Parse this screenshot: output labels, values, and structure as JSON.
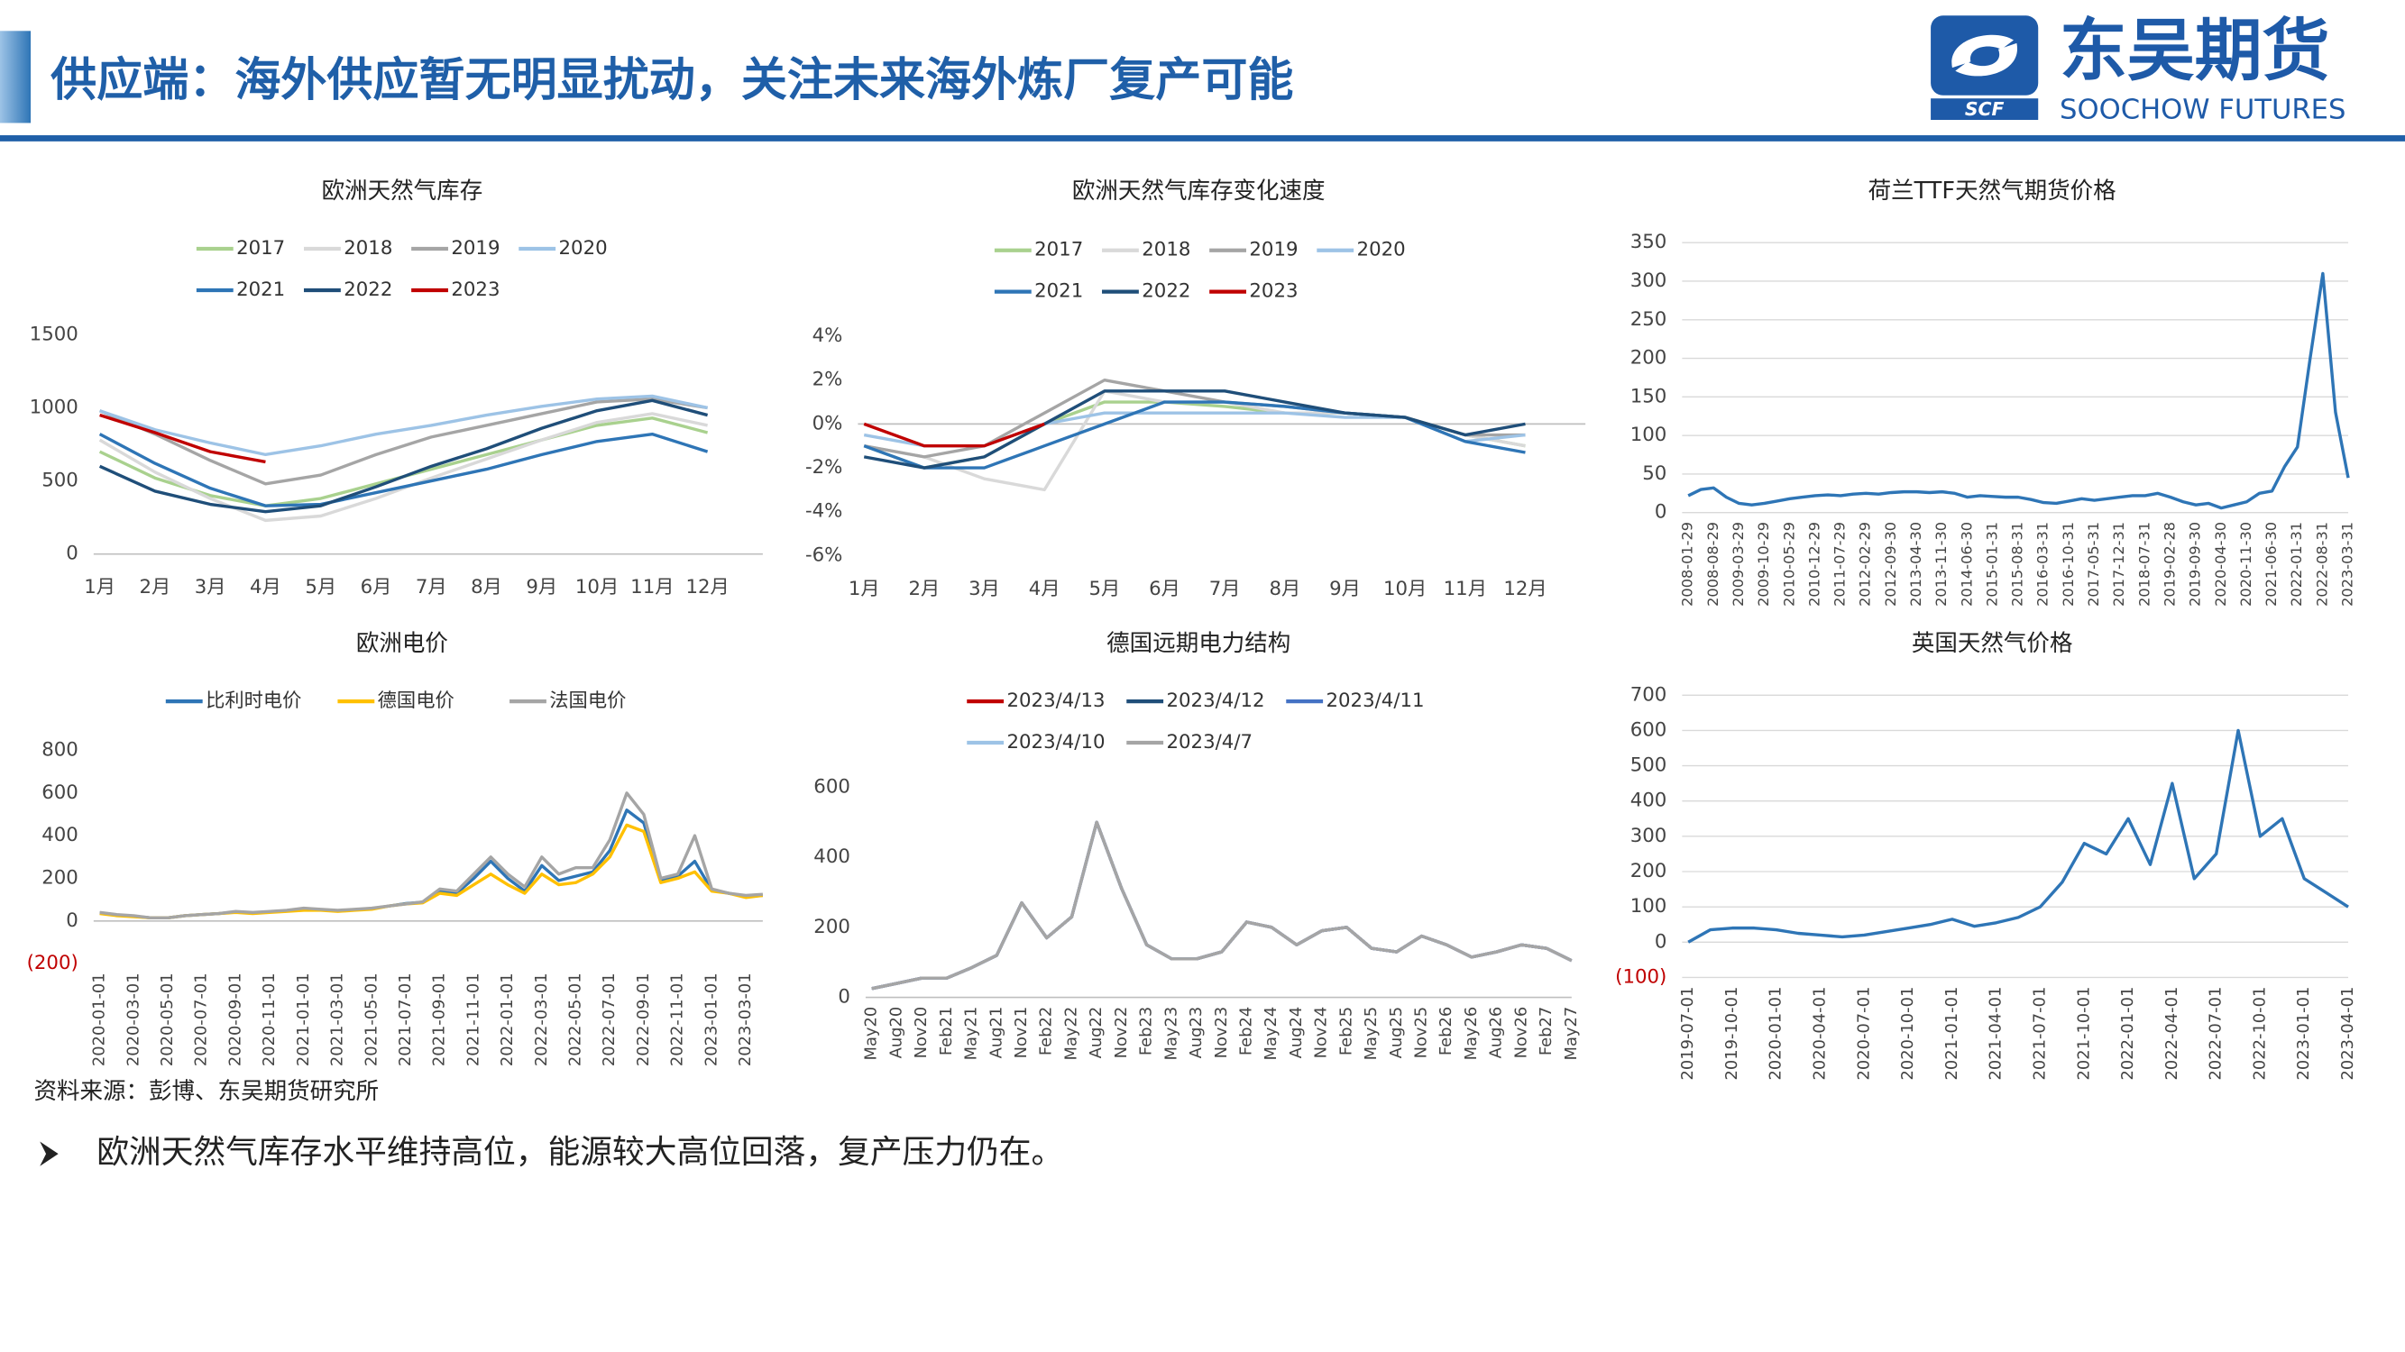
{
  "header": {
    "title": "供应端：海外供应暂无明显扰动，关注未来海外炼厂复产可能",
    "logo_mark": "SCF",
    "logo_cn": "东吴期货",
    "logo_en": "SOOCHOW FUTURES"
  },
  "chart_data": [
    {
      "type": "line",
      "title": "欧洲天然气库存",
      "legend": "top",
      "categories": [
        "1月",
        "2月",
        "3月",
        "4月",
        "5月",
        "6月",
        "7月",
        "8月",
        "9月",
        "10月",
        "11月",
        "12月"
      ],
      "series": [
        {
          "name": "2017",
          "color": "#a9d18e",
          "values": [
            700,
            520,
            400,
            330,
            380,
            480,
            580,
            680,
            780,
            880,
            930,
            830
          ]
        },
        {
          "name": "2018",
          "color": "#d9d9d9",
          "values": [
            780,
            560,
            380,
            230,
            260,
            380,
            520,
            650,
            780,
            900,
            960,
            880
          ]
        },
        {
          "name": "2019",
          "color": "#a5a5a5",
          "values": [
            980,
            820,
            640,
            480,
            540,
            680,
            800,
            880,
            960,
            1040,
            1060,
            1000
          ]
        },
        {
          "name": "2020",
          "color": "#9dc3e6",
          "values": [
            980,
            850,
            760,
            680,
            740,
            820,
            880,
            950,
            1010,
            1060,
            1080,
            1000
          ]
        },
        {
          "name": "2021",
          "color": "#2e75b6",
          "values": [
            820,
            620,
            450,
            330,
            340,
            420,
            500,
            580,
            680,
            770,
            820,
            700
          ]
        },
        {
          "name": "2022",
          "color": "#1f4e79",
          "values": [
            600,
            430,
            340,
            290,
            330,
            460,
            600,
            720,
            860,
            980,
            1050,
            950
          ]
        },
        {
          "name": "2023",
          "color": "#c00000",
          "values": [
            950,
            830,
            700,
            630,
            null,
            null,
            null,
            null,
            null,
            null,
            null,
            null
          ]
        }
      ],
      "ylim": [
        0,
        1500
      ],
      "yticks": [
        0,
        500,
        1000,
        1500
      ],
      "grid": false
    },
    {
      "type": "line",
      "title": "欧洲天然气库存变化速度",
      "legend": "top",
      "categories": [
        "1月",
        "2月",
        "3月",
        "4月",
        "5月",
        "6月",
        "7月",
        "8月",
        "9月",
        "10月",
        "11月",
        "12月"
      ],
      "series": [
        {
          "name": "2017",
          "color": "#a9d18e",
          "values": [
            -1,
            -2,
            -1.5,
            0,
            1,
            1,
            0.8,
            0.5,
            0.5,
            0.3,
            -0.5,
            -1
          ]
        },
        {
          "name": "2018",
          "color": "#d9d9d9",
          "values": [
            -1,
            -1.5,
            -2.5,
            -3,
            1.5,
            1,
            1,
            0.5,
            0.5,
            0.3,
            -0.5,
            -1
          ]
        },
        {
          "name": "2019",
          "color": "#a5a5a5",
          "values": [
            -1,
            -1.5,
            -1,
            0.5,
            2,
            1.5,
            1,
            0.8,
            0.5,
            0.3,
            -0.5,
            -0.5
          ]
        },
        {
          "name": "2020",
          "color": "#9dc3e6",
          "values": [
            -0.5,
            -1,
            -1,
            0,
            0.5,
            0.5,
            0.5,
            0.5,
            0.3,
            0.3,
            -0.8,
            -0.5
          ]
        },
        {
          "name": "2021",
          "color": "#2e75b6",
          "values": [
            -1,
            -2,
            -2,
            -1,
            0,
            1,
            1,
            0.8,
            0.5,
            0.3,
            -0.8,
            -1.3
          ]
        },
        {
          "name": "2022",
          "color": "#1f4e79",
          "values": [
            -1.5,
            -2,
            -1.5,
            0,
            1.5,
            1.5,
            1.5,
            1,
            0.5,
            0.3,
            -0.5,
            0
          ]
        },
        {
          "name": "2023",
          "color": "#c00000",
          "values": [
            0,
            -1,
            -1,
            0,
            null,
            null,
            null,
            null,
            null,
            null,
            null,
            null
          ]
        }
      ],
      "ylim": [
        -6,
        4
      ],
      "yticks": [
        {
          "value": -6,
          "label": "-6%"
        },
        {
          "value": -4,
          "label": "-4%"
        },
        {
          "value": -2,
          "label": "-2%"
        },
        {
          "value": 0,
          "label": "0%"
        },
        {
          "value": 2,
          "label": "2%"
        },
        {
          "value": 4,
          "label": "4%"
        }
      ],
      "grid": false
    },
    {
      "type": "line",
      "title": "荷兰TTF天然气期货价格",
      "categories": [
        "2008-01-29",
        null,
        "2008-08-29",
        null,
        "2009-03-29",
        null,
        "2009-10-29",
        null,
        "2010-05-29",
        null,
        "2010-12-29",
        null,
        "2011-07-29",
        null,
        "2012-02-29",
        null,
        "2012-09-30",
        null,
        "2013-04-30",
        null,
        "2013-11-30",
        null,
        "2014-06-30",
        null,
        "2015-01-31",
        null,
        "2015-08-31",
        null,
        "2016-03-31",
        null,
        "2016-10-31",
        null,
        "2017-05-31",
        null,
        "2017-12-31",
        null,
        "2018-07-31",
        null,
        "2019-02-28",
        null,
        "2019-09-30",
        null,
        "2020-04-30",
        null,
        "2020-11-30",
        null,
        "2021-06-30",
        null,
        "2022-01-31",
        null,
        "2022-08-31",
        null,
        "2023-03-31"
      ],
      "series": [
        {
          "name": null,
          "color": "#2e75b6",
          "values": [
            22,
            30,
            32,
            20,
            12,
            10,
            12,
            15,
            18,
            20,
            22,
            23,
            22,
            24,
            25,
            24,
            26,
            27,
            27,
            26,
            27,
            25,
            20,
            22,
            21,
            20,
            20,
            17,
            13,
            12,
            15,
            18,
            16,
            18,
            20,
            22,
            22,
            25,
            20,
            14,
            10,
            12,
            6,
            10,
            14,
            25,
            28,
            60,
            85,
            200,
            310,
            130,
            45
          ]
        }
      ],
      "ylim": [
        0,
        350
      ],
      "yticks": [
        0,
        50,
        100,
        150,
        200,
        250,
        300,
        350
      ],
      "grid": true
    },
    {
      "type": "line",
      "title": "欧洲电价",
      "legend": "top",
      "categories": [
        "2020-01-01",
        null,
        "2020-03-01",
        null,
        "2020-05-01",
        null,
        "2020-07-01",
        null,
        "2020-09-01",
        null,
        "2020-11-01",
        null,
        "2021-01-01",
        null,
        "2021-03-01",
        null,
        "2021-05-01",
        null,
        "2021-07-01",
        null,
        "2021-09-01",
        null,
        "2021-11-01",
        null,
        "2022-01-01",
        null,
        "2022-03-01",
        null,
        "2022-05-01",
        null,
        "2022-07-01",
        null,
        "2022-09-01",
        null,
        "2022-11-01",
        null,
        "2023-01-01",
        null,
        "2023-03-01",
        null
      ],
      "series": [
        {
          "name": "比利时电价",
          "color": "#2e75b6",
          "values": [
            38,
            28,
            22,
            15,
            15,
            25,
            30,
            35,
            42,
            38,
            42,
            48,
            55,
            52,
            48,
            52,
            58,
            70,
            82,
            88,
            140,
            130,
            200,
            280,
            200,
            140,
            260,
            190,
            210,
            230,
            330,
            520,
            460,
            190,
            210,
            280,
            145,
            130,
            115,
            120
          ]
        },
        {
          "name": "德国电价",
          "color": "#ffc000",
          "values": [
            35,
            25,
            20,
            15,
            15,
            25,
            30,
            35,
            40,
            35,
            40,
            45,
            50,
            50,
            45,
            50,
            55,
            70,
            80,
            85,
            130,
            120,
            170,
            220,
            170,
            130,
            220,
            170,
            180,
            220,
            300,
            450,
            420,
            180,
            200,
            230,
            140,
            130,
            110,
            120
          ]
        },
        {
          "name": "法国电价",
          "color": "#a5a5a5",
          "values": [
            40,
            30,
            25,
            15,
            15,
            25,
            30,
            35,
            45,
            40,
            45,
            50,
            60,
            55,
            50,
            55,
            60,
            70,
            80,
            90,
            150,
            140,
            220,
            300,
            220,
            160,
            300,
            220,
            250,
            250,
            380,
            600,
            500,
            200,
            220,
            400,
            150,
            130,
            120,
            125
          ]
        }
      ],
      "ylim": [
        -200,
        800
      ],
      "yticks": [
        {
          "value": -200,
          "label": "(200)"
        },
        0,
        200,
        400,
        600,
        800
      ],
      "negative_tick_color": "#c00000",
      "grid": false
    },
    {
      "type": "line",
      "title": "德国远期电力结构",
      "legend": "top",
      "categories": [
        "May20",
        "Aug20",
        "Nov20",
        "Feb21",
        "May21",
        "Aug21",
        "Nov21",
        "Feb22",
        "May22",
        "Aug22",
        "Nov22",
        "Feb23",
        "May23",
        "Aug23",
        "Nov23",
        "Feb24",
        "May24",
        "Aug24",
        "Nov24",
        "Feb25",
        "May25",
        "Aug25",
        "Nov25",
        "Feb26",
        "May26",
        "Aug26",
        "Nov26",
        "Feb27",
        "May27"
      ],
      "series": [
        {
          "name": "2023/4/13",
          "color": "#c00000",
          "values": [
            25,
            40,
            55,
            55,
            85,
            120,
            270,
            170,
            230,
            500,
            310,
            150,
            110,
            110,
            130,
            215,
            200,
            150,
            190,
            200,
            140,
            130,
            175,
            150,
            115,
            130,
            150,
            140,
            105
          ]
        },
        {
          "name": "2023/4/12",
          "color": "#1f4e79",
          "values": [
            25,
            40,
            55,
            55,
            85,
            120,
            270,
            170,
            230,
            500,
            310,
            150,
            110,
            110,
            130,
            215,
            200,
            150,
            190,
            200,
            140,
            130,
            175,
            150,
            115,
            130,
            150,
            140,
            105
          ]
        },
        {
          "name": "2023/4/11",
          "color": "#4472c4",
          "values": [
            25,
            40,
            55,
            55,
            85,
            120,
            270,
            170,
            230,
            500,
            310,
            150,
            110,
            110,
            130,
            215,
            200,
            150,
            190,
            200,
            140,
            130,
            175,
            150,
            115,
            130,
            150,
            140,
            105
          ]
        },
        {
          "name": "2023/4/10",
          "color": "#9dc3e6",
          "values": [
            25,
            40,
            55,
            55,
            85,
            120,
            270,
            170,
            230,
            500,
            310,
            150,
            110,
            110,
            130,
            215,
            200,
            150,
            190,
            200,
            140,
            130,
            175,
            150,
            115,
            130,
            150,
            140,
            105
          ]
        },
        {
          "name": "2023/4/7",
          "color": "#a5a5a5",
          "values": [
            25,
            40,
            55,
            55,
            85,
            120,
            270,
            170,
            230,
            500,
            310,
            150,
            110,
            110,
            130,
            215,
            200,
            150,
            190,
            200,
            140,
            130,
            175,
            150,
            115,
            130,
            150,
            140,
            105
          ]
        }
      ],
      "ylim": [
        0,
        600
      ],
      "yticks": [
        0,
        200,
        400,
        600
      ],
      "grid": false
    },
    {
      "type": "line",
      "title": "英国天然气价格",
      "categories": [
        "2019-07-01",
        null,
        "2019-10-01",
        null,
        "2020-01-01",
        null,
        "2020-04-01",
        null,
        "2020-07-01",
        null,
        "2020-10-01",
        null,
        "2021-01-01",
        null,
        "2021-04-01",
        null,
        "2021-07-01",
        null,
        "2021-10-01",
        null,
        "2022-01-01",
        null,
        "2022-04-01",
        null,
        "2022-07-01",
        null,
        "2022-10-01",
        null,
        "2023-01-01",
        null,
        "2023-04-01"
      ],
      "series": [
        {
          "name": null,
          "color": "#2e75b6",
          "values": [
            0,
            35,
            40,
            40,
            35,
            25,
            20,
            15,
            20,
            30,
            40,
            50,
            65,
            45,
            55,
            70,
            100,
            170,
            280,
            250,
            350,
            220,
            450,
            180,
            250,
            600,
            300,
            350,
            180,
            140,
            100
          ]
        }
      ],
      "ylim": [
        -100,
        700
      ],
      "yticks": [
        {
          "value": -100,
          "label": "(100)"
        },
        0,
        100,
        200,
        300,
        400,
        500,
        600,
        700
      ],
      "negative_tick_color": "#c00000",
      "grid": true
    }
  ],
  "source": "资料来源：彭博、东吴期货研究所",
  "bullet": "欧洲天然气库存水平维持高位，能源较大高位回落，复产压力仍在。"
}
